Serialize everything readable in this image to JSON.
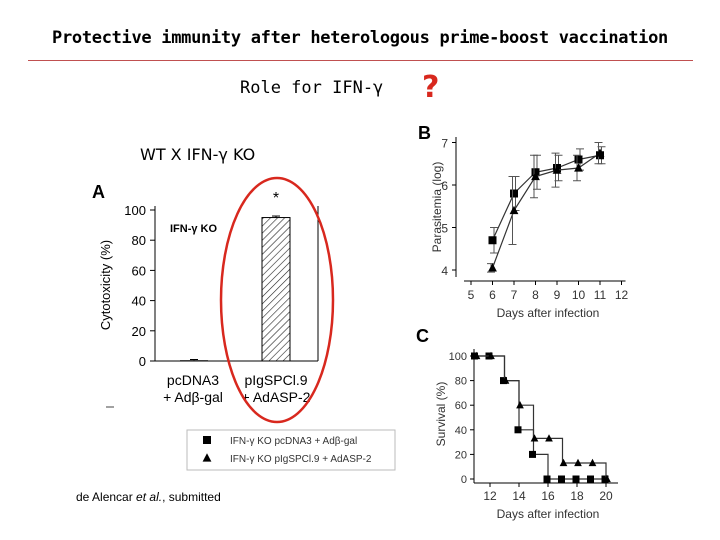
{
  "slide": {
    "title": "Protective immunity after heterologous prime-boost vaccination",
    "subtitle": "Role for IFN-γ",
    "question_mark": "?",
    "comparison": "WT  X  IFN-γ KO",
    "citation_pre": "de Alencar ",
    "citation_em": "et al.",
    "citation_post": ", submitted",
    "accent_color": "#d8281e"
  },
  "chart_data": [
    {
      "panel": "A",
      "type": "bar",
      "title": "IFN-γ  KO",
      "ylabel": "Cytotoxicity (%)",
      "ylim": [
        0,
        100
      ],
      "yticks": [
        0,
        20,
        40,
        60,
        80,
        100
      ],
      "categories": [
        [
          "pcDNA3",
          "+ Adβ-gal"
        ],
        [
          "pIgSPCl.9",
          "+ AdASP-2"
        ]
      ],
      "values": [
        0.5,
        95
      ],
      "error": [
        0.5,
        1
      ],
      "significance": [
        "",
        "*"
      ],
      "highlight": "circled second bar"
    },
    {
      "panel": "B",
      "type": "line",
      "xlabel": "Days after infection",
      "ylabel": "Parasitemia (log)",
      "xlim": [
        5,
        12
      ],
      "ylim": [
        4,
        7
      ],
      "xticks": [
        5,
        6,
        7,
        8,
        9,
        10,
        11,
        12
      ],
      "yticks": [
        4,
        5,
        6,
        7
      ],
      "series": [
        {
          "name": "IFN-γ  KO pcDNA3 + Adβ-gal",
          "marker": "square",
          "x": [
            6,
            7,
            8,
            9,
            10,
            11
          ],
          "y": [
            4.7,
            5.8,
            6.3,
            6.4,
            6.6,
            6.7
          ],
          "err": [
            0.3,
            0.4,
            0.4,
            0.3,
            0.25,
            0.2
          ]
        },
        {
          "name": "IFN-γ  KO pIgSPCl.9 + AdASP-2",
          "marker": "triangle",
          "x": [
            6,
            7,
            8,
            9,
            10,
            11
          ],
          "y": [
            4.05,
            5.4,
            6.2,
            6.35,
            6.4,
            6.75
          ],
          "err": [
            0.1,
            0.8,
            0.5,
            0.4,
            0.3,
            0.25
          ]
        }
      ]
    },
    {
      "panel": "C",
      "type": "line",
      "xlabel": "Days after infection",
      "ylabel": "Survival (%)",
      "xlim": [
        10,
        21
      ],
      "ylim": [
        0,
        100
      ],
      "xticks": [
        12,
        14,
        16,
        18,
        20
      ],
      "yticks": [
        0,
        20,
        40,
        60,
        80,
        100
      ],
      "series": [
        {
          "name": "IFN-γ  KO pcDNA3 + Adβ-gal",
          "marker": "square",
          "step": true,
          "x": [
            11,
            12,
            13,
            14,
            15,
            16,
            17,
            18,
            19,
            20
          ],
          "y": [
            100,
            100,
            80,
            40,
            20,
            0,
            0,
            0,
            0,
            0
          ]
        },
        {
          "name": "IFN-γ  KO pIgSPCl.9 + AdASP-2",
          "marker": "triangle",
          "step": true,
          "x": [
            11,
            12,
            13,
            14,
            15,
            16,
            17,
            18,
            19,
            20
          ],
          "y": [
            100,
            100,
            80,
            60,
            33,
            33,
            13,
            13,
            13,
            0
          ]
        }
      ]
    }
  ],
  "legend": {
    "items": [
      {
        "marker": "square",
        "label": "IFN-γ  KO pcDNA3 + Adβ-gal"
      },
      {
        "marker": "triangle",
        "label": "IFN-γ  KO pIgSPCl.9 + AdASP-2"
      }
    ]
  }
}
